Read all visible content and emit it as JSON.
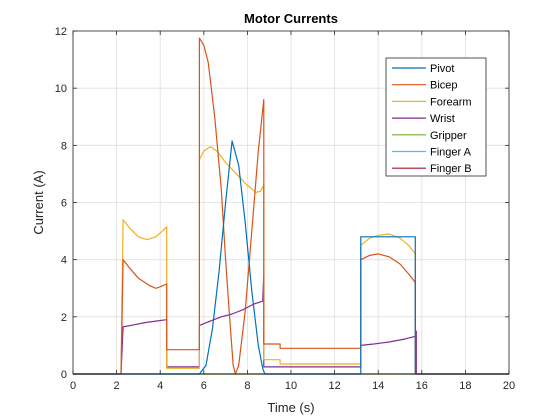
{
  "chart_data": {
    "type": "line",
    "title": "Motor Currents",
    "xlabel": "Time (s)",
    "ylabel": "Current (A)",
    "xlim": [
      0,
      20
    ],
    "ylim": [
      0,
      12
    ],
    "x_ticks": [
      0,
      2,
      4,
      6,
      8,
      10,
      12,
      14,
      16,
      18,
      20
    ],
    "y_ticks": [
      0,
      2,
      4,
      6,
      8,
      10,
      12
    ],
    "grid": true,
    "legend_position": "top-right",
    "series": [
      {
        "name": "Pivot",
        "color": "#0072BD",
        "points": [
          [
            0,
            0
          ],
          [
            5.8,
            0
          ],
          [
            6.1,
            0.3
          ],
          [
            6.4,
            1.6
          ],
          [
            6.7,
            3.6
          ],
          [
            7.0,
            6.0
          ],
          [
            7.3,
            8.15
          ],
          [
            7.6,
            7.3
          ],
          [
            7.9,
            5.3
          ],
          [
            8.2,
            2.9
          ],
          [
            8.5,
            1.0
          ],
          [
            8.7,
            0.2
          ],
          [
            8.8,
            0
          ],
          [
            13.2,
            0
          ],
          [
            13.2,
            4.8
          ],
          [
            15.7,
            4.8
          ],
          [
            15.7,
            0
          ],
          [
            20,
            0
          ]
        ]
      },
      {
        "name": "Bicep",
        "color": "#D95319",
        "points": [
          [
            0,
            0
          ],
          [
            2.2,
            0
          ],
          [
            2.3,
            4.0
          ],
          [
            2.6,
            3.7
          ],
          [
            3.0,
            3.35
          ],
          [
            3.5,
            3.1
          ],
          [
            3.8,
            3.0
          ],
          [
            4.0,
            3.05
          ],
          [
            4.3,
            3.15
          ],
          [
            4.3,
            0.85
          ],
          [
            5.8,
            0.85
          ],
          [
            5.8,
            11.75
          ],
          [
            6.0,
            11.5
          ],
          [
            6.2,
            10.9
          ],
          [
            6.5,
            9.0
          ],
          [
            6.8,
            6.5
          ],
          [
            7.0,
            4.0
          ],
          [
            7.2,
            1.8
          ],
          [
            7.35,
            0.3
          ],
          [
            7.45,
            0
          ],
          [
            7.6,
            0.3
          ],
          [
            7.9,
            2.2
          ],
          [
            8.2,
            5.0
          ],
          [
            8.5,
            7.8
          ],
          [
            8.75,
            9.6
          ],
          [
            8.75,
            1.05
          ],
          [
            9.5,
            1.05
          ],
          [
            9.5,
            0.9
          ],
          [
            13.2,
            0.9
          ],
          [
            13.2,
            4.0
          ],
          [
            13.6,
            4.15
          ],
          [
            14.0,
            4.2
          ],
          [
            14.5,
            4.1
          ],
          [
            15.0,
            3.85
          ],
          [
            15.4,
            3.5
          ],
          [
            15.7,
            3.2
          ],
          [
            15.7,
            0
          ],
          [
            20,
            0
          ]
        ]
      },
      {
        "name": "Forearm",
        "color": "#EDB120",
        "points": [
          [
            0,
            0
          ],
          [
            2.2,
            0
          ],
          [
            2.3,
            5.4
          ],
          [
            2.6,
            5.1
          ],
          [
            3.0,
            4.8
          ],
          [
            3.4,
            4.7
          ],
          [
            3.8,
            4.8
          ],
          [
            4.1,
            5.0
          ],
          [
            4.3,
            5.15
          ],
          [
            4.3,
            0.2
          ],
          [
            5.8,
            0.2
          ],
          [
            5.8,
            7.5
          ],
          [
            6.0,
            7.8
          ],
          [
            6.3,
            7.95
          ],
          [
            6.6,
            7.8
          ],
          [
            7.0,
            7.4
          ],
          [
            7.5,
            7.0
          ],
          [
            8.0,
            6.6
          ],
          [
            8.4,
            6.35
          ],
          [
            8.6,
            6.4
          ],
          [
            8.75,
            6.6
          ],
          [
            8.75,
            0.5
          ],
          [
            9.5,
            0.5
          ],
          [
            9.5,
            0.35
          ],
          [
            13.2,
            0.35
          ],
          [
            13.2,
            4.5
          ],
          [
            13.6,
            4.75
          ],
          [
            14.0,
            4.85
          ],
          [
            14.5,
            4.9
          ],
          [
            15.0,
            4.75
          ],
          [
            15.4,
            4.5
          ],
          [
            15.7,
            4.2
          ],
          [
            15.7,
            0
          ],
          [
            20,
            0
          ]
        ]
      },
      {
        "name": "Wrist",
        "color": "#7E2F8E",
        "points": [
          [
            0,
            0
          ],
          [
            2.2,
            0
          ],
          [
            2.3,
            1.65
          ],
          [
            2.8,
            1.72
          ],
          [
            3.3,
            1.8
          ],
          [
            3.8,
            1.85
          ],
          [
            4.3,
            1.9
          ],
          [
            4.3,
            0.25
          ],
          [
            5.8,
            0.25
          ],
          [
            5.8,
            1.7
          ],
          [
            6.3,
            1.85
          ],
          [
            6.8,
            2.0
          ],
          [
            7.3,
            2.1
          ],
          [
            7.8,
            2.25
          ],
          [
            8.3,
            2.45
          ],
          [
            8.7,
            2.55
          ],
          [
            8.75,
            3.5
          ],
          [
            8.75,
            0.25
          ],
          [
            13.2,
            0.25
          ],
          [
            13.2,
            1.0
          ],
          [
            13.8,
            1.05
          ],
          [
            14.5,
            1.12
          ],
          [
            15.2,
            1.22
          ],
          [
            15.7,
            1.32
          ],
          [
            15.75,
            1.5
          ],
          [
            15.75,
            0
          ],
          [
            20,
            0
          ]
        ]
      },
      {
        "name": "Gripper",
        "color": "#77AC30",
        "points": [
          [
            0,
            0
          ],
          [
            20,
            0
          ]
        ]
      },
      {
        "name": "Finger A",
        "color": "#4DBEEE",
        "points": [
          [
            0,
            0
          ],
          [
            20,
            0
          ]
        ]
      },
      {
        "name": "Finger B",
        "color": "#A2142F",
        "points": [
          [
            0,
            0
          ],
          [
            20,
            0
          ]
        ]
      }
    ]
  }
}
